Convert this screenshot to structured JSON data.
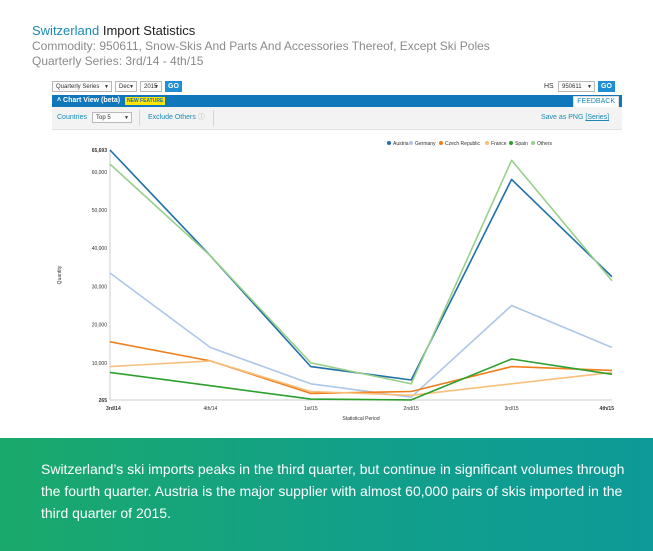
{
  "header": {
    "country": "Switzerland",
    "title_rest": "Import Statistics",
    "commodity": "Commodity: 950611, Snow-Skis And Parts And Accessories Thereof, Except Ski Poles",
    "series": "Quarterly Series: 3rd/14 - 4th/15"
  },
  "toolbar": {
    "series_select": "Quarterly Series",
    "month_select": "Dec",
    "year_select": "2015",
    "go_label": "GO",
    "hs_label": "HS",
    "hs_select": "950611",
    "hs_go_label": "GO"
  },
  "chart_header": {
    "title": "Chart View (beta)",
    "badge": "NEW FEATURE",
    "feedback": "FEEDBACK"
  },
  "options": {
    "countries_label": "Countries",
    "countries_select": "Top 5",
    "exclude_others": "Exclude Others",
    "save_label": "Save as PNG",
    "save_link": "[Series]"
  },
  "colors": {
    "Austria": "#1f6fa8",
    "Germany": "#aec7e8",
    "Czech Republic": "#f07f1b",
    "France": "#f8c07c",
    "Spain": "#2ca02c",
    "Others": "#98d08a"
  },
  "chart_data": {
    "type": "line",
    "categories": [
      "3rd/14",
      "4th/14",
      "1st/15",
      "2nd/15",
      "3rd/15",
      "4th/15"
    ],
    "xlabel": "Statistical Period",
    "ylabel": "Quantity",
    "ylim": [
      265,
      65693
    ],
    "yticks": [
      265,
      10000,
      20000,
      30000,
      40000,
      50000,
      60000,
      65693
    ],
    "ytick_labels": [
      "265",
      "10,000",
      "20,000",
      "30,000",
      "40,000",
      "50,000",
      "60,000",
      "65,693"
    ],
    "legend_position": "top-right",
    "series": [
      {
        "name": "Austria",
        "values": [
          65693,
          38000,
          9000,
          5500,
          58000,
          32500
        ]
      },
      {
        "name": "Germany",
        "values": [
          33500,
          14000,
          4500,
          1000,
          25000,
          14000
        ]
      },
      {
        "name": "Czech Republic",
        "values": [
          15500,
          10500,
          2000,
          2500,
          9000,
          8000
        ]
      },
      {
        "name": "France",
        "values": [
          9000,
          10500,
          2500,
          1500,
          4500,
          7500
        ]
      },
      {
        "name": "Spain",
        "values": [
          7500,
          4000,
          500,
          300,
          11000,
          7000
        ]
      },
      {
        "name": "Others",
        "values": [
          62000,
          38000,
          10000,
          4500,
          63000,
          31500
        ]
      }
    ]
  },
  "footer": {
    "text": "Switzerland’s ski imports peaks in the third quarter, but continue in significant volumes through the fourth quarter.  Austria is the major supplier with almost 60,000 pairs of skis imported in the third quarter of 2015."
  }
}
